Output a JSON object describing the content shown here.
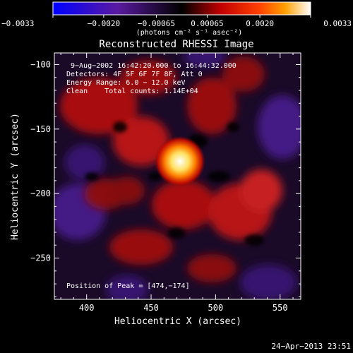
{
  "chart_data": {
    "type": "heatmap",
    "title": "Reconstructed RHESSI Image",
    "xlabel": "Heliocentric X (arcsec)",
    "ylabel": "Heliocentric Y (arcsec)",
    "xlim": [
      375,
      566
    ],
    "ylim": [
      -282,
      -91
    ],
    "x_ticks": [
      400,
      450,
      500,
      550
    ],
    "x_tick_labels": [
      "400",
      "450",
      "500",
      "550"
    ],
    "y_ticks": [
      -100,
      -150,
      -200,
      -250
    ],
    "y_tick_labels": [
      "−100",
      "−150",
      "−200",
      "−250"
    ],
    "colorbar": {
      "range": [
        -0.0033,
        0.0033
      ],
      "ticks": [
        -0.0033,
        -0.002,
        -0.00065,
        0.00065,
        0.002,
        0.0033
      ],
      "tick_labels": [
        "−0.0033",
        "−0.0020",
        "−0.00065",
        "0.00065",
        "0.0020",
        "0.0033"
      ],
      "unit_label": "(photons cm⁻² s⁻¹ asec⁻²)",
      "colors": [
        "#0000ff",
        "#5a1aa0",
        "#000000",
        "#c00000",
        "#ff4000",
        "#ffa000",
        "#ffffff"
      ]
    },
    "annotations": [
      "9−Aug−2002 16:42:20.000 to 16:44:32.000",
      "Detectors: 4F 5F 6F 7F 8F, Att 0",
      "Energy Range: 6.0 − 12.0 keV",
      "Clean    Total counts: 1.14E+04"
    ],
    "peak_label": "Position of Peak = [474,−174]",
    "peak_position": [
      474,
      -174
    ],
    "timestamp": "24−Apr−2013 23:51"
  }
}
